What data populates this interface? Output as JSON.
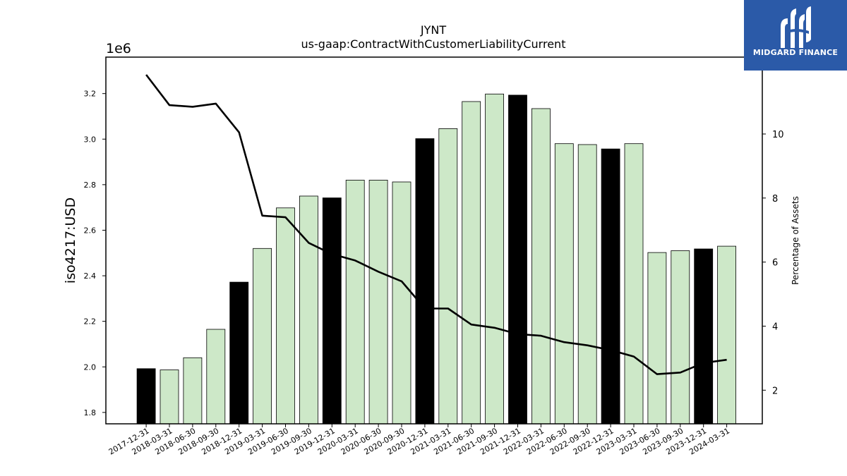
{
  "chart_data": {
    "type": "bar",
    "title": "JYNT",
    "subtitle": "us-gaap:ContractWithCustomerLiabilityCurrent",
    "ylabel": "iso4217:USD",
    "y_multiplier_label": "1e6",
    "y2label": "Percentage of Assets",
    "ylim": [
      1.75,
      3.36
    ],
    "y2lim": [
      0.95,
      12.4
    ],
    "yticks": [
      "1.8",
      "2.0",
      "2.2",
      "2.4",
      "2.6",
      "2.8",
      "3.0",
      "3.2"
    ],
    "y2ticks": [
      "2",
      "4",
      "6",
      "8",
      "10"
    ],
    "categories": [
      "2017-12-31",
      "2018-03-31",
      "2018-06-30",
      "2018-09-30",
      "2018-12-31",
      "2019-03-31",
      "2019-06-30",
      "2019-09-30",
      "2019-12-31",
      "2020-03-31",
      "2020-06-30",
      "2020-09-30",
      "2020-12-31",
      "2021-03-31",
      "2021-06-30",
      "2021-09-30",
      "2021-12-31",
      "2022-03-31",
      "2022-06-30",
      "2022-09-30",
      "2022-12-31",
      "2023-03-31",
      "2023-06-30",
      "2023-09-30",
      "2023-12-31",
      "2024-03-31"
    ],
    "series": [
      {
        "kind": "bar",
        "values": [
          1.992,
          1.987,
          2.04,
          2.165,
          2.372,
          2.52,
          2.698,
          2.75,
          2.742,
          2.82,
          2.82,
          2.812,
          3.002,
          3.046,
          3.165,
          3.198,
          3.193,
          3.134,
          2.98,
          2.976,
          2.957,
          2.98,
          2.502,
          2.51,
          2.518,
          2.53
        ],
        "year_end": [
          true,
          false,
          false,
          false,
          true,
          false,
          false,
          false,
          true,
          false,
          false,
          false,
          true,
          false,
          false,
          false,
          true,
          false,
          false,
          false,
          true,
          false,
          false,
          false,
          true,
          false
        ]
      },
      {
        "kind": "line",
        "axis": "right",
        "values": [
          11.85,
          10.9,
          10.85,
          10.95,
          10.05,
          7.45,
          7.4,
          6.6,
          6.25,
          6.05,
          5.7,
          5.4,
          4.55,
          4.55,
          4.05,
          3.95,
          3.75,
          3.7,
          3.5,
          3.4,
          3.25,
          3.05,
          2.5,
          2.55,
          2.85,
          2.95
        ]
      }
    ],
    "colors": {
      "bar_year_end": "#000000",
      "bar_quarter": "#cde8c8",
      "bar_edge": "#000000",
      "line": "#000000"
    }
  },
  "logo": {
    "text": "MIDGARD FINANCE",
    "background": "#2b5aa8"
  }
}
